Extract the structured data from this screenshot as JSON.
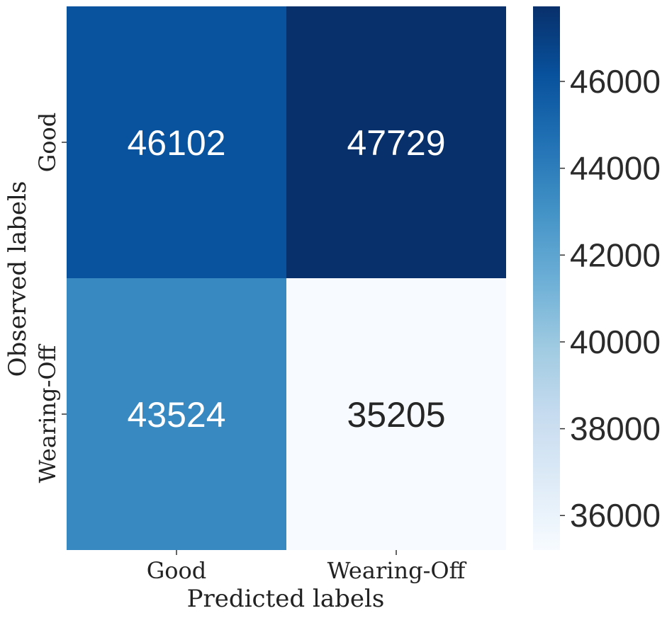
{
  "chart_data": {
    "type": "heatmap",
    "title": "",
    "xlabel": "Predicted labels",
    "ylabel": "Observed labels",
    "x_categories": [
      "Good",
      "Wearing-Off"
    ],
    "y_categories": [
      "Good",
      "Wearing-Off"
    ],
    "values": [
      [
        46102,
        47729
      ],
      [
        43524,
        35205
      ]
    ],
    "colormap": "Blues",
    "colorbar": {
      "min": 35205,
      "max": 47729,
      "ticks": [
        36000,
        38000,
        40000,
        42000,
        44000,
        46000
      ],
      "tick_labels": [
        "36000",
        "38000",
        "40000",
        "42000",
        "44000",
        "46000"
      ]
    }
  }
}
